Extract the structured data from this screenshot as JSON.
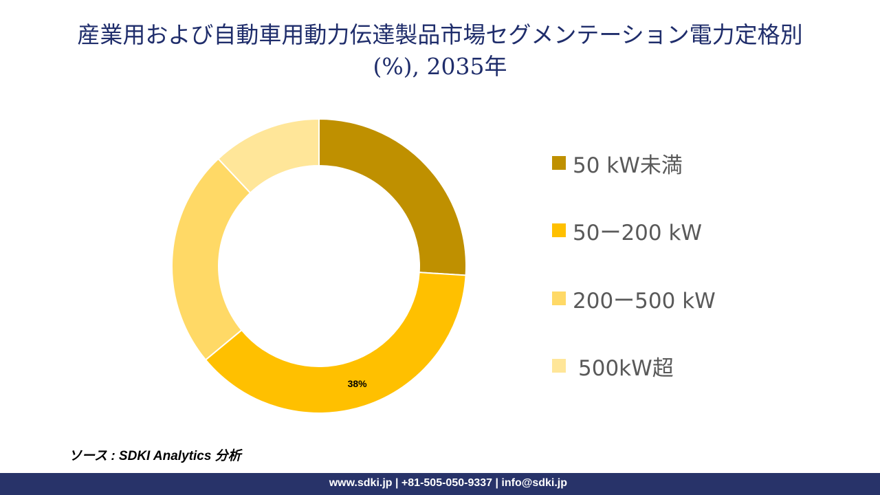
{
  "title": "産業用および自動車用動力伝達製品市場セグメンテーション電力定格別 (%), 2035年",
  "title_line1": "産業用および自動車用動力伝達製品市場セグメンテーション電力定格別",
  "title_line2": "(%), 2035年",
  "chart_data": {
    "type": "pie",
    "donut": true,
    "title": "産業用および自動車用動力伝達製品市場セグメンテーション電力定格別 (%), 2035年",
    "categories": [
      "50 kW未満",
      "50ー200 kW",
      "200ー500 kW",
      "500kW超"
    ],
    "values": [
      26,
      38,
      24,
      12
    ],
    "unit": "%",
    "colors": [
      "#BF9000",
      "#FFC000",
      "#FFD966",
      "#FFE699"
    ],
    "data_labels": [
      "",
      "38%",
      "",
      ""
    ],
    "legend_position": "right",
    "start_angle": "top, clockwise"
  },
  "source": "ソース : SDKI Analytics 分析",
  "footer": "www.sdki.jp | +81-505-050-9337 | info@sdki.jp"
}
